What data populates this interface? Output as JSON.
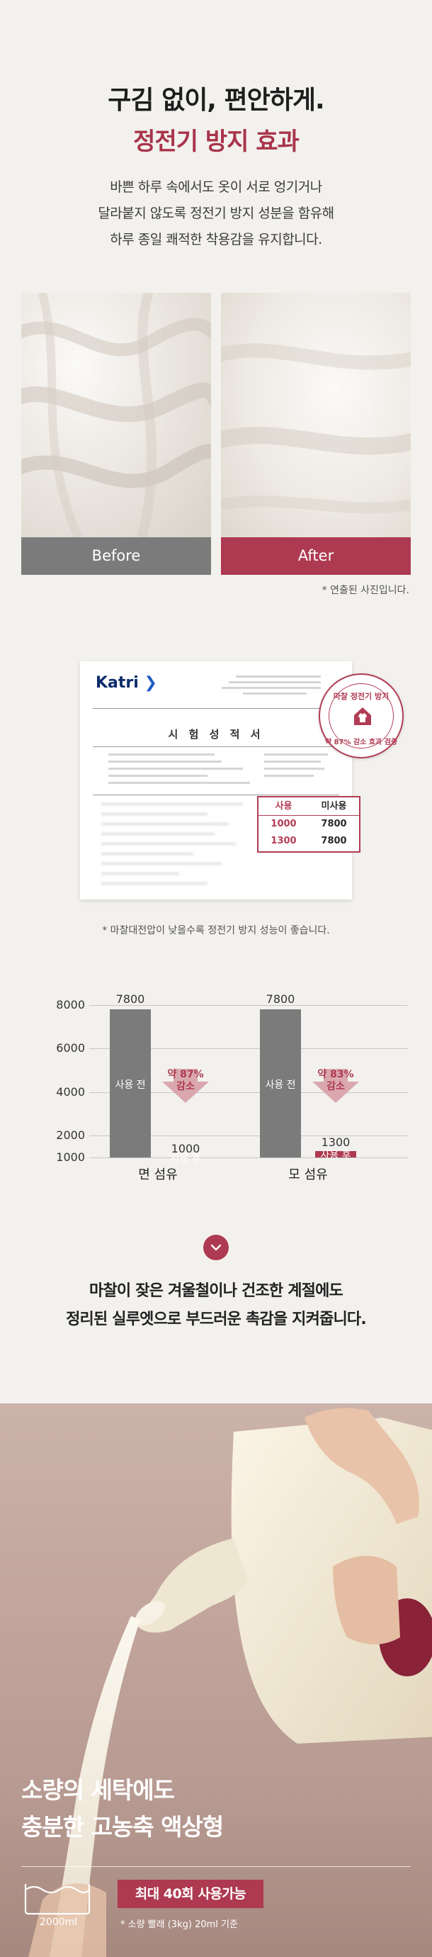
{
  "hero": {
    "headline": "구김 없이, 편안하게.",
    "subheadline": "정전기 방지 효과",
    "description_lines": [
      "바쁜 하루 속에서도 옷이 서로 엉기거나",
      "달라붙지 않도록 정전기 방지 성분을 함유해",
      "하루 종일 쾌적한 착용감을 유지합니다."
    ]
  },
  "comparison": {
    "before_label": "Before",
    "after_label": "After",
    "note": "* 연출된 사진입니다."
  },
  "certificate": {
    "logo_text": "Katri",
    "title": "시 험 성 적 서",
    "stamp_top": "마찰 정전기 방지",
    "stamp_bottom": "약 87% 감소 효과 검증",
    "table": {
      "headers": [
        "사용",
        "미사용"
      ],
      "rows": [
        [
          "1000",
          "7800"
        ],
        [
          "1300",
          "7800"
        ]
      ]
    },
    "note": "* 마찰대전압이 낮을수록 정전기 방지 성능이 좋습니다."
  },
  "chart_data": {
    "type": "bar",
    "categories": [
      "면 섬유",
      "모 섬유"
    ],
    "ylim": [
      1000,
      8000
    ],
    "yticks": [
      "8000",
      "6000",
      "4000",
      "2000",
      "1000"
    ],
    "series": [
      {
        "name": "사용 전",
        "values": [
          7800,
          7800
        ]
      },
      {
        "name": "사용 후",
        "values": [
          1000,
          1300
        ]
      }
    ],
    "value_labels": {
      "before": [
        "7800",
        "7800"
      ],
      "after": [
        "1000",
        "1300"
      ]
    },
    "reductions": [
      [
        "약 87%",
        "감소"
      ],
      [
        "약 83%",
        "감소"
      ]
    ],
    "colors": {
      "before": "#7b7b7b",
      "after": "#ad3a50"
    }
  },
  "message": {
    "icon": "chevron-down-icon",
    "lines": [
      "마찰이 잦은 겨울철이나 건조한 계절에도",
      "정리된 실루엣으로 부드러운 촉감을 지켜줍니다."
    ]
  },
  "product": {
    "headline_lines": [
      "소량의 세탁에도",
      "충분한 고농축 액상형"
    ],
    "volume": "2000ml",
    "badge": "최대 40회 사용가능",
    "sub_note": "* 소량 빨래 (3kg) 20ml 기준"
  },
  "colors": {
    "accent": "#ad3a50",
    "gray": "#7b7b7b",
    "background": "#f3f1ee"
  }
}
